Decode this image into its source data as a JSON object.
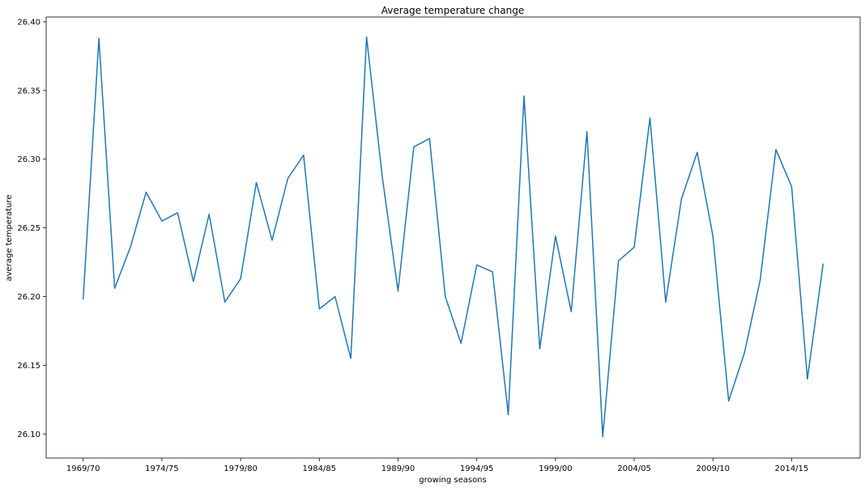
{
  "chart_data": {
    "type": "line",
    "title": "Average temperature change",
    "xlabel": "growing seasons",
    "ylabel": "average temperature",
    "grid": false,
    "legend": "none",
    "line_color": "#1f77b4",
    "x": [
      "1969/70",
      "1970/71",
      "1971/72",
      "1972/73",
      "1973/74",
      "1974/75",
      "1975/76",
      "1976/77",
      "1977/78",
      "1978/79",
      "1979/80",
      "1980/81",
      "1981/82",
      "1982/83",
      "1983/84",
      "1984/85",
      "1985/86",
      "1986/87",
      "1987/88",
      "1988/89",
      "1989/90",
      "1990/91",
      "1991/92",
      "1992/93",
      "1993/94",
      "1994/95",
      "1995/96",
      "1996/97",
      "1997/98",
      "1998/99",
      "1999/00",
      "2000/01",
      "2001/02",
      "2002/03",
      "2003/04",
      "2004/05",
      "2005/06",
      "2006/07",
      "2007/08",
      "2008/09",
      "2009/10",
      "2010/11",
      "2011/12",
      "2012/13",
      "2013/14",
      "2014/15",
      "2015/16",
      "2016/17"
    ],
    "x_ticks": [
      "1969/70",
      "1974/75",
      "1979/80",
      "1984/85",
      "1989/90",
      "1994/95",
      "1999/00",
      "2004/05",
      "2009/10",
      "2014/15"
    ],
    "y_ticks": [
      "26.10",
      "26.15",
      "26.20",
      "26.25",
      "26.30",
      "26.35",
      "26.40"
    ],
    "ylim": [
      26.0825,
      26.4035
    ],
    "series": [
      {
        "values": [
          26.198,
          26.388,
          26.206,
          26.236,
          26.276,
          26.255,
          26.261,
          26.211,
          26.26,
          26.196,
          26.213,
          26.283,
          26.241,
          26.286,
          26.303,
          26.191,
          26.2,
          26.155,
          26.389,
          26.287,
          26.204,
          26.309,
          26.315,
          26.2,
          26.166,
          26.223,
          26.218,
          26.114,
          26.346,
          26.162,
          26.244,
          26.189,
          26.32,
          26.098,
          26.226,
          26.236,
          26.33,
          26.196,
          26.271,
          26.305,
          26.244,
          26.124,
          26.159,
          26.212,
          26.307,
          26.28,
          26.14,
          26.224
        ]
      }
    ]
  }
}
